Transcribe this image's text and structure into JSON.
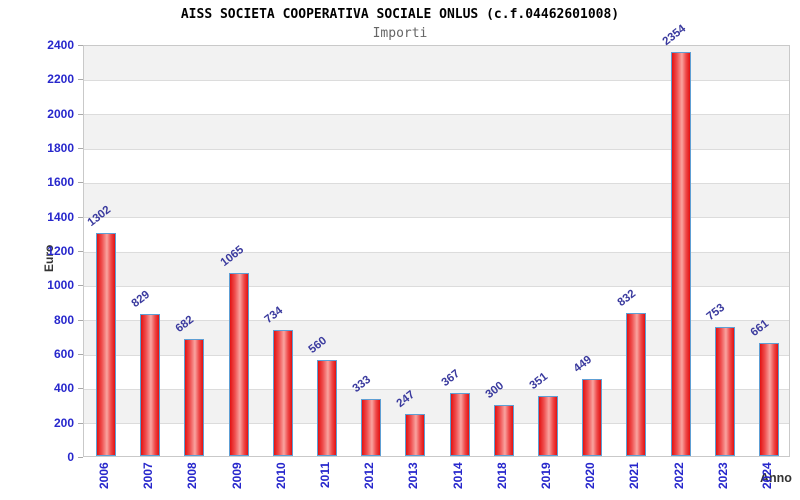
{
  "header": {
    "title": "AISS SOCIETA COOPERATIVA SOCIALE ONLUS (c.f.04462601008)",
    "subtitle": "Importi"
  },
  "chart_data": {
    "type": "bar",
    "title": "AISS SOCIETA COOPERATIVA SOCIALE ONLUS (c.f.04462601008)",
    "subtitle": "Importi",
    "xlabel": "Anno",
    "ylabel": "Euro",
    "categories": [
      "2006",
      "2007",
      "2008",
      "2009",
      "2010",
      "2011",
      "2012",
      "2013",
      "2014",
      "2018",
      "2019",
      "2020",
      "2021",
      "2022",
      "2023",
      "2024"
    ],
    "values": [
      1302,
      829,
      682,
      1065,
      734,
      560,
      333,
      247,
      367,
      300,
      351,
      449,
      832,
      2354,
      753,
      661
    ],
    "ylim": [
      0,
      2400
    ],
    "ytick_step": 200,
    "grid": "on",
    "legend": "none",
    "band_shading": "alternating horizontal bands per 200 units",
    "colors": {
      "bar_fill_edge": "#e31212",
      "bar_fill_highlight": "#f9a4a0",
      "bar_border": "#5e9fd4",
      "axis_tick_text": "#2727cc",
      "value_label_text": "#3a3a9e",
      "band_gray": "#f2f2f2",
      "band_white": "#ffffff",
      "gridline": "#dcdcdc",
      "plot_border": "#c9c9c9",
      "title_text": "#000000",
      "subtitle_text": "#666666",
      "axis_title_text": "#333333"
    }
  }
}
